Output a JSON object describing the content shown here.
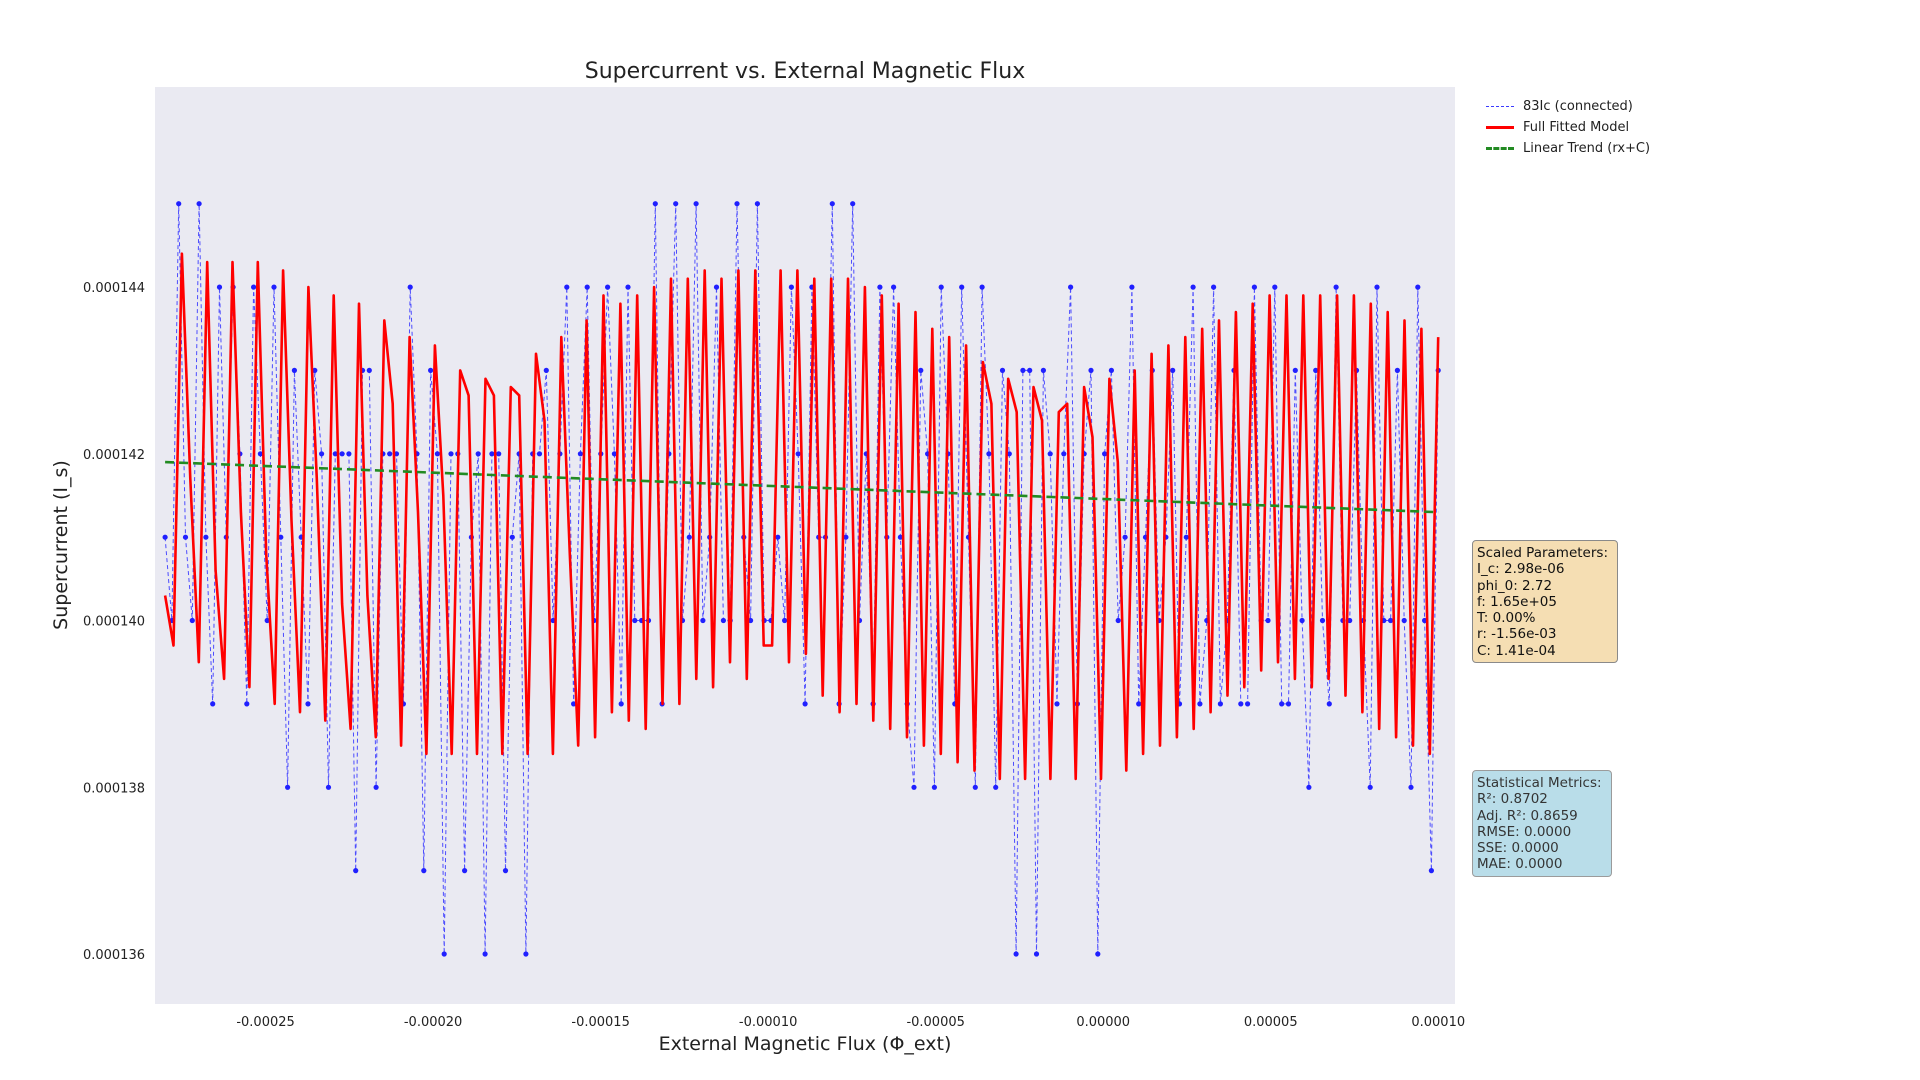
{
  "chart_data": {
    "type": "line",
    "title": "Supercurrent vs. External Magnetic Flux",
    "xlabel": "External Magnetic Flux (Φ_ext)",
    "ylabel": "Supercurrent (I_s)",
    "xlim": [
      -0.000283,
      0.000105
    ],
    "ylim": [
      0.0001354,
      0.0001464
    ],
    "xticks": [
      -0.00025,
      -0.0002,
      -0.00015,
      -0.0001,
      -5e-05,
      0.0,
      5e-05,
      0.0001
    ],
    "xtick_labels": [
      "-0.00025",
      "-0.00020",
      "-0.00015",
      "-0.00010",
      "-0.00005",
      "0.00000",
      "0.00005",
      "0.00010"
    ],
    "yticks": [
      0.000136,
      0.000138,
      0.00014,
      0.000142,
      0.000144
    ],
    "ytick_labels": [
      "0.000136",
      "0.000138",
      "0.000140",
      "0.000142",
      "0.000144"
    ],
    "grid": false,
    "legend_position": "outside-top-right",
    "series": [
      {
        "name": "83Ic (connected)",
        "style": "dashed-markers",
        "color": "#3b3bff",
        "x_start": -0.00028,
        "x_end": 0.0001,
        "values": [
          0.000141,
          0.00014,
          0.000145,
          0.000141,
          0.00014,
          0.000145,
          0.000141,
          0.000139,
          0.000144,
          0.000141,
          0.000144,
          0.000142,
          0.000139,
          0.000144,
          0.000142,
          0.00014,
          0.000144,
          0.000141,
          0.000138,
          0.000143,
          0.000141,
          0.000139,
          0.000143,
          0.000142,
          0.000138,
          0.000142,
          0.000142,
          0.000142,
          0.000137,
          0.000143,
          0.000143,
          0.000138,
          0.000142,
          0.000142,
          0.000142,
          0.000139,
          0.000144,
          0.000142,
          0.000137,
          0.000143,
          0.000142,
          0.000136,
          0.000142,
          0.000142,
          0.000137,
          0.000141,
          0.000142,
          0.000136,
          0.000142,
          0.000142,
          0.000137,
          0.000141,
          0.000142,
          0.000136,
          0.000142,
          0.000142,
          0.000143,
          0.00014,
          0.000142,
          0.000144,
          0.000139,
          0.000142,
          0.000144,
          0.00014,
          0.000142,
          0.000144,
          0.000142,
          0.000139,
          0.000144,
          0.00014,
          0.00014,
          0.00014,
          0.000145,
          0.000139,
          0.000142,
          0.000145,
          0.00014,
          0.000141,
          0.000145,
          0.00014,
          0.000141,
          0.000144,
          0.00014,
          0.00014,
          0.000145,
          0.000141,
          0.00014,
          0.000145,
          0.00014,
          0.00014,
          0.000141,
          0.00014,
          0.000144,
          0.000142,
          0.000139,
          0.000144,
          0.000141,
          0.000141,
          0.000145,
          0.000139,
          0.000141,
          0.000145,
          0.00014,
          0.000142,
          0.000139,
          0.000144,
          0.000141,
          0.000144,
          0.000141,
          0.000139,
          0.000138,
          0.000143,
          0.000142,
          0.000138,
          0.000144,
          0.000142,
          0.000139,
          0.000144,
          0.000141,
          0.000138,
          0.000144,
          0.000142,
          0.000138,
          0.000143,
          0.000142,
          0.000136,
          0.000143,
          0.000143,
          0.000136,
          0.000143,
          0.000142,
          0.000139,
          0.000142,
          0.000144,
          0.000139,
          0.000142,
          0.000143,
          0.000136,
          0.000142,
          0.000143,
          0.00014,
          0.000141,
          0.000144,
          0.000139,
          0.000141,
          0.000143,
          0.00014,
          0.000141,
          0.000143,
          0.000139,
          0.000141,
          0.000144,
          0.000139,
          0.00014,
          0.000144,
          0.000139,
          0.00014,
          0.000143,
          0.000139,
          0.000139,
          0.000144,
          0.00014,
          0.00014,
          0.000144,
          0.000139,
          0.000139,
          0.000143,
          0.00014,
          0.000138,
          0.000143,
          0.00014,
          0.000139,
          0.000144,
          0.00014,
          0.00014,
          0.000143,
          0.00014,
          0.000138,
          0.000144,
          0.00014,
          0.00014,
          0.000143,
          0.00014,
          0.000138,
          0.000144,
          0.00014,
          0.000137,
          0.000143
        ]
      },
      {
        "name": "Full Fitted Model",
        "style": "solid",
        "color": "#ff0000",
        "x_start": -0.00028,
        "x_end": 0.0001,
        "values": [
          0.0001403,
          0.0001397,
          0.0001444,
          0.0001417,
          0.0001395,
          0.0001443,
          0.0001406,
          0.0001393,
          0.0001443,
          0.0001413,
          0.0001392,
          0.0001443,
          0.0001408,
          0.000139,
          0.0001442,
          0.0001412,
          0.0001389,
          0.000144,
          0.0001417,
          0.0001388,
          0.0001439,
          0.0001402,
          0.0001387,
          0.0001438,
          0.0001403,
          0.0001386,
          0.0001436,
          0.0001426,
          0.0001385,
          0.0001434,
          0.0001413,
          0.0001384,
          0.0001433,
          0.0001415,
          0.0001384,
          0.000143,
          0.0001427,
          0.0001384,
          0.0001429,
          0.0001427,
          0.0001384,
          0.0001428,
          0.0001427,
          0.0001384,
          0.0001432,
          0.0001424,
          0.0001384,
          0.0001434,
          0.0001408,
          0.0001385,
          0.0001436,
          0.0001386,
          0.0001439,
          0.0001389,
          0.0001438,
          0.0001388,
          0.0001439,
          0.0001387,
          0.000144,
          0.000139,
          0.0001441,
          0.000139,
          0.0001441,
          0.0001393,
          0.0001442,
          0.0001392,
          0.0001441,
          0.0001395,
          0.0001442,
          0.0001393,
          0.0001442,
          0.0001397,
          0.0001397,
          0.0001442,
          0.0001395,
          0.0001442,
          0.0001396,
          0.0001441,
          0.0001391,
          0.0001441,
          0.0001389,
          0.0001441,
          0.000139,
          0.000144,
          0.0001388,
          0.0001439,
          0.0001387,
          0.0001438,
          0.0001386,
          0.0001437,
          0.0001385,
          0.0001435,
          0.0001384,
          0.0001434,
          0.0001383,
          0.0001433,
          0.0001382,
          0.0001431,
          0.0001426,
          0.0001381,
          0.0001429,
          0.0001425,
          0.0001381,
          0.0001428,
          0.0001424,
          0.0001381,
          0.0001425,
          0.0001426,
          0.0001381,
          0.0001428,
          0.0001422,
          0.0001381,
          0.0001429,
          0.0001419,
          0.0001382,
          0.000143,
          0.0001384,
          0.0001432,
          0.0001385,
          0.0001433,
          0.0001386,
          0.0001434,
          0.0001387,
          0.0001435,
          0.0001389,
          0.0001436,
          0.0001391,
          0.0001437,
          0.0001392,
          0.0001438,
          0.0001394,
          0.0001439,
          0.0001395,
          0.0001439,
          0.0001393,
          0.0001439,
          0.0001392,
          0.0001439,
          0.0001393,
          0.0001439,
          0.0001391,
          0.0001439,
          0.0001389,
          0.0001438,
          0.0001387,
          0.0001437,
          0.0001386,
          0.0001436,
          0.0001385,
          0.0001435,
          0.0001384,
          0.0001434
        ]
      },
      {
        "name": "Linear Trend (rx+C)",
        "style": "dashed",
        "color": "#228b22",
        "x": [
          -0.00028,
          0.0001
        ],
        "values": [
          0.0001419,
          0.0001413
        ]
      }
    ]
  },
  "parameters_box": {
    "lines": [
      "Scaled Parameters:",
      "I_c: 2.98e-06",
      "phi_0: 2.72",
      "f: 1.65e+05",
      "T: 0.00%",
      "r: -1.56e-03",
      "C: 1.41e-04"
    ]
  },
  "metrics_box": {
    "lines": [
      "Statistical Metrics:",
      "R²: 0.8702",
      "Adj. R²: 0.8659",
      "RMSE: 0.0000",
      "SSE: 0.0000",
      "MAE: 0.0000"
    ]
  },
  "colors": {
    "plot_background": "#eaeaf2",
    "params_box": "#f5deb3",
    "metrics_box": "#add8e6"
  }
}
